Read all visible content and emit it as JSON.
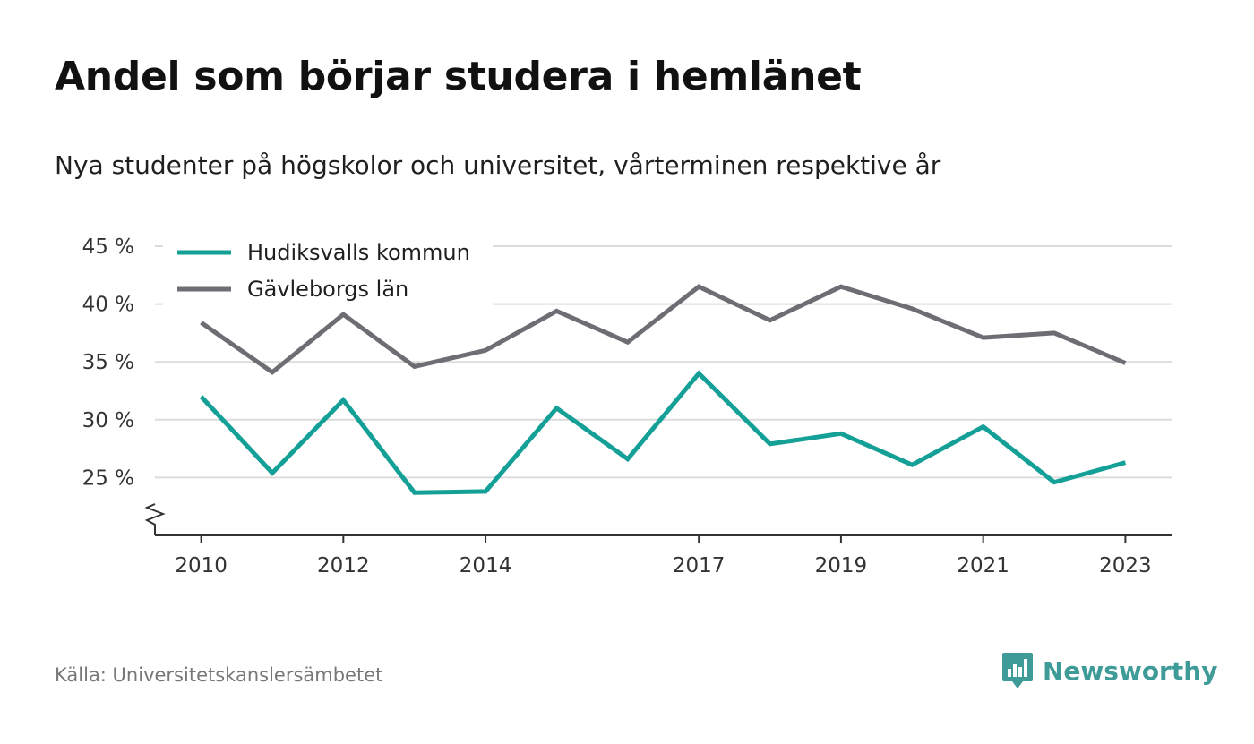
{
  "header": {
    "title": "Andel som börjar studera i hemlänet",
    "subtitle": "Nya studenter på högskolor och universitet, vårterminen respektive år"
  },
  "footer": {
    "source": "Källa: Universitetskanslersämbetet",
    "brand": "Newsworthy",
    "brand_icon": "newsworthy-logo-icon",
    "brand_color": "#3f9b97"
  },
  "chart_data": {
    "type": "line",
    "title": "",
    "xlabel": "",
    "ylabel": "",
    "x": [
      2010,
      2011,
      2012,
      2013,
      2014,
      2015,
      2016,
      2017,
      2018,
      2019,
      2020,
      2021,
      2022,
      2023
    ],
    "x_tick_labels": [
      "2010",
      "2012",
      "2014",
      "2017",
      "2019",
      "2021",
      "2023"
    ],
    "y_tick_labels": [
      "25 %",
      "30 %",
      "35 %",
      "40 %",
      "45 %"
    ],
    "y_ticks": [
      25,
      30,
      35,
      40,
      45
    ],
    "ylim": [
      20,
      45
    ],
    "xlim": [
      2009.35,
      2023.65
    ],
    "y_axis_break": true,
    "grid": true,
    "legend_position": "top-left",
    "series": [
      {
        "name": "Hudiksvalls kommun",
        "color": "#14a096",
        "values": [
          32.0,
          25.4,
          31.7,
          23.7,
          23.8,
          31.0,
          26.6,
          34.0,
          27.9,
          28.8,
          26.1,
          29.4,
          24.6,
          26.3
        ]
      },
      {
        "name": "Gävleborgs län",
        "color": "#6d6d73",
        "values": [
          38.4,
          34.1,
          39.1,
          34.6,
          36.0,
          39.4,
          36.7,
          41.5,
          38.6,
          41.5,
          39.6,
          37.1,
          37.5,
          34.9
        ]
      }
    ]
  }
}
